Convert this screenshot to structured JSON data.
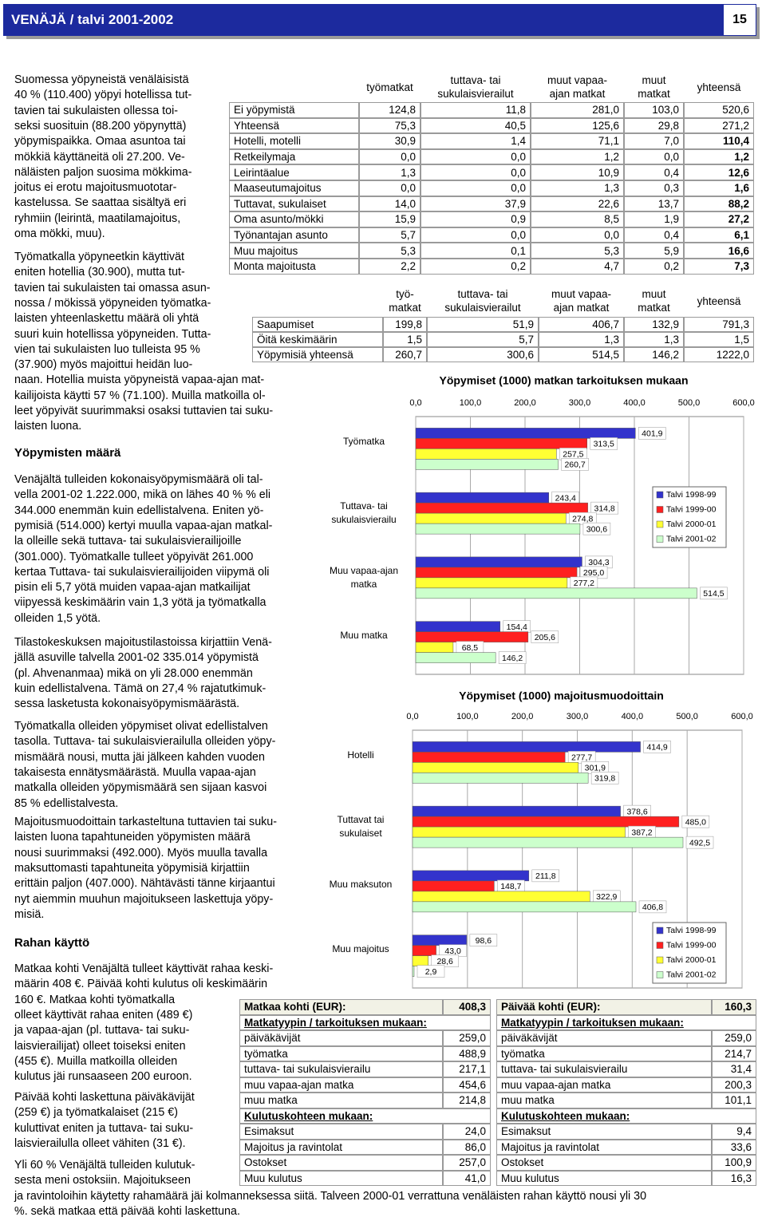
{
  "header": {
    "title": "VENÄJÄ / talvi 2001-2002",
    "page": "15"
  },
  "body": [
    {
      "lines": [
        "Suomessa yöpyneistä venäläisistä",
        "40 % (110.400) yöpyi hotellissa tut-",
        "tavien tai sukulaisten ollessa toi-",
        "seksi suosituin (88.200 yöpynyttä)",
        "yöpymispaikka. Omaa asuntoa tai",
        "mökkiä käyttäneitä oli 27.200. Ve-",
        "näläisten paljon suosima mökkima-",
        "joitus ei erotu majoitusmuototar-",
        "kastelussa. Se saattaa sisältyä eri",
        "ryhmiin (leirintä, maatilamajoitus,",
        "oma mökki, muu)."
      ]
    },
    {
      "lines": [
        "Työmatkalla yöpyneetkin käyttivät",
        "eniten hotellia (30.900), mutta tut-",
        "tavien tai sukulaisten tai omassa asun-",
        "nossa / mökissä yöpyneiden työmatka-",
        "laisten yhteenlaskettu määrä oli yhtä",
        "suuri kuin hotellissa yöpyneiden. Tutta-",
        "vien tai sukulaisten luo tulleista 95 %",
        "(37.900) myös majoittui heidän luo-",
        "naan. Hotellia muista yöpyneistä vapaa-ajan mat-",
        "kailijoista käytti 57 % (71.100). Muilla matkoilla ol-",
        "leet yöpyivät suurimmaksi osaksi tuttavien tai suku-",
        "laisten luona."
      ]
    },
    {
      "heading": "Yöpymisten määrä"
    },
    {
      "lines": [
        "Venäjältä tulleiden kokonaisyöpymismäärä oli tal-",
        "vella 2001-02 1.222.000, mikä on lähes 40 % % eli",
        "344.000 enemmän kuin edellistalvena. Eniten yö-",
        "pymisiä (514.000) kertyi muulla vapaa-ajan matkal-",
        "la olleille sekä tuttava- tai sukulaisvierailijoille",
        "(301.000). Työmatkalle tulleet yöpyivät 261.000",
        "kertaa Tuttava- tai sukulaisvierailijoiden viipymä oli",
        "pisin eli 5,7 yötä muiden vapaa-ajan matkailijat",
        "viipyessä keskimäärin vain 1,3 yötä ja työmatkalla",
        "olleiden 1,5 yötä."
      ]
    },
    {
      "lines": [
        "Tilastokeskuksen majoitustilastoissa kirjattiin Venä-",
        "jällä asuville talvella 2001-02 335.014 yöpymistä",
        "(pl. Ahvenanmaa) mikä on yli 28.000 enemmän",
        "kuin edellistalvena. Tämä on 27,4 % rajatutkimuk-",
        "sessa lasketusta kokonaisyöpymismäärästä."
      ]
    },
    {
      "lines": [
        "Työmatkalla olleiden yöpymiset olivat edellistalven",
        "tasolla. Tuttava- tai sukulaisvierailulla olleiden yöpy-",
        "mismäärä nousi, mutta jäi jälkeen kahden vuoden",
        "takaisesta ennätysmäärästä. Muulla vapaa-ajan",
        "matkalla olleiden yöpymismäärä sen sijaan kasvoi",
        "85 % edellistalvesta."
      ]
    },
    {
      "lines": [
        "Majoitusmuodoittain tarkasteltuna tuttavien tai suku-",
        "laisten luona tapahtuneiden yöpymisten määrä",
        "nousi suurimmaksi (492.000). Myös muulla tavalla",
        "maksuttomasti tapahtuneita yöpymisiä kirjattiin",
        "erittäin paljon (407.000). Nähtävästi tänne kirjaantui",
        "nyt aiemmin muuhun majoitukseen laskettuja yöpy-",
        "misiä."
      ]
    },
    {
      "heading": "Rahan käyttö"
    },
    {
      "lines": [
        "Matkaa kohti Venäjältä tulleet käyttivät rahaa keski-",
        "määrin 408 €. Päivää kohti kulutus oli keskimäärin",
        "160 €. Matkaa kohti työmatkalla",
        "olleet käyttivät rahaa eniten (489 €)",
        "ja vapaa-ajan (pl. tuttava- tai suku-",
        "laisvierailijat) olleet toiseksi eniten",
        "(455 €). Muilla matkoilla olleiden",
        "kulutus jäi runsaaseen 200 euroon."
      ]
    },
    {
      "lines": [
        "Päivää kohti laskettuna päiväkävijät",
        "(259 €) ja työmatkalaiset (215 €)",
        "kuluttivat eniten ja tuttava- tai suku-",
        "laisvierailulla olleet vähiten (31 €)."
      ]
    },
    {
      "lines": [
        "Yli 60 % Venäjältä tulleiden kulutuk-",
        "sesta meni ostoksiin. Majoitukseen",
        "ja ravintoloihin käytetty rahamäärä jäi kolmanneksessa siitä.  Talveen 2000-01 verrattuna venäläisten rahan käyttö nousi yli 30",
        "%. sekä matkaa että päivää kohti laskettuna."
      ]
    }
  ],
  "table1": {
    "header": [
      "",
      "työmatkat",
      "tuttava- tai\nsukulaisvierailut",
      "muut vapaa-\najan matkat",
      "muut\nmatkat",
      "yhteensä"
    ],
    "rows": [
      [
        "Ei yöpymistä",
        "124,8",
        "11,8",
        "281,0",
        "103,0",
        "520,6"
      ],
      [
        "Yhteensä",
        "75,3",
        "40,5",
        "125,6",
        "29,8",
        "271,2"
      ],
      [
        "Hotelli, motelli",
        "30,9",
        "1,4",
        "71,1",
        "7,0",
        "110,4"
      ],
      [
        "Retkeilymaja",
        "0,0",
        "0,0",
        "1,2",
        "0,0",
        "1,2"
      ],
      [
        "Leirintäalue",
        "1,3",
        "0,0",
        "10,9",
        "0,4",
        "12,6"
      ],
      [
        "Maaseutumajoitus",
        "0,0",
        "0,0",
        "1,3",
        "0,3",
        "1,6"
      ],
      [
        "Tuttavat, sukulaiset",
        "14,0",
        "37,9",
        "22,6",
        "13,7",
        "88,2"
      ],
      [
        "Oma asunto/mökki",
        "15,9",
        "0,9",
        "8,5",
        "1,9",
        "27,2"
      ],
      [
        "Työnantajan asunto",
        "5,7",
        "0,0",
        "0,0",
        "0,4",
        "6,1"
      ],
      [
        "Muu majoitus",
        "5,3",
        "0,1",
        "5,3",
        "5,9",
        "16,6"
      ],
      [
        "Monta majoitusta",
        "2,2",
        "0,2",
        "4,7",
        "0,2",
        "7,3"
      ]
    ]
  },
  "table2": {
    "header": [
      "",
      "työ-\nmatkat",
      "tuttava- tai\nsukulaisvierailut",
      "muut vapaa-\najan matkat",
      "muut\nmatkat",
      "yhteensä"
    ],
    "rows": [
      [
        "Saapumiset",
        "199,8",
        "51,9",
        "406,7",
        "132,9",
        "791,3"
      ],
      [
        "Öitä keskimäärin",
        "1,5",
        "5,7",
        "1,3",
        "1,3",
        "1,5"
      ],
      [
        "Yöpymisiä yhteensä",
        "260,7",
        "300,6",
        "514,5",
        "146,2",
        "1222,0"
      ]
    ]
  },
  "charts": [
    {
      "type": "bar",
      "horizontal": true,
      "title": "Yöpymiset (1000) matkan tarkoituksen mukaan",
      "categories": [
        "Työmatka",
        "Tuttava- tai sukulaisvierailu",
        "Muu vapaa-ajan matka",
        "Muu matka"
      ],
      "series": [
        {
          "name": "Talvi 1998-99",
          "color": "#3333cc",
          "values": [
            401.9,
            243.4,
            304.3,
            154.4
          ],
          "value_labels": [
            "401,9",
            "243,4",
            "304,3",
            "154,4"
          ]
        },
        {
          "name": "Talvi 1999-00",
          "color": "#ff2020",
          "values": [
            313.5,
            314.8,
            295.0,
            205.6
          ],
          "value_labels": [
            "313,5",
            "314,8",
            "295,0",
            "205,6"
          ]
        },
        {
          "name": "Talvi 2000-01",
          "color": "#ffff33",
          "values": [
            257.5,
            274.8,
            277.2,
            68.5
          ],
          "value_labels": [
            "257,5",
            "274,8",
            "277,2",
            "68,5"
          ]
        },
        {
          "name": "Talvi 2001-02",
          "color": "#ccffcc",
          "values": [
            260.7,
            300.6,
            514.5,
            146.2
          ],
          "value_labels": [
            "260,7",
            "300,6",
            "514,5",
            "146,2"
          ]
        }
      ],
      "xlim": [
        0,
        600
      ],
      "xticks": [
        {
          "value": 0,
          "label": "0,0"
        },
        {
          "value": 100,
          "label": "100,0"
        },
        {
          "value": 200,
          "label": "200,0"
        },
        {
          "value": 300,
          "label": "300,0"
        },
        {
          "value": 400,
          "label": "400,0"
        },
        {
          "value": 500,
          "label": "500,0"
        },
        {
          "value": 600,
          "label": "600,0"
        }
      ],
      "grid": true,
      "legend": "right"
    },
    {
      "type": "bar",
      "horizontal": true,
      "title": "Yöpymiset (1000) majoitusmuodoittain",
      "categories": [
        "Hotelli",
        "Tuttavat tai sukulaiset",
        "Muu maksuton",
        "Muu majoitus"
      ],
      "series": [
        {
          "name": "Talvi 1998-99",
          "color": "#3333cc",
          "values": [
            414.9,
            378.6,
            211.8,
            98.6
          ],
          "value_labels": [
            "414,9",
            "378,6",
            "211,8",
            "98,6"
          ]
        },
        {
          "name": "Talvi 1999-00",
          "color": "#ff2020",
          "values": [
            277.7,
            485.0,
            148.7,
            43.0
          ],
          "value_labels": [
            "277,7",
            "485,0",
            "148,7",
            "43,0"
          ]
        },
        {
          "name": "Talvi 2000-01",
          "color": "#ffff33",
          "values": [
            301.9,
            387.2,
            322.9,
            28.6
          ],
          "value_labels": [
            "301,9",
            "387,2",
            "322,9",
            "28,6"
          ]
        },
        {
          "name": "Talvi 2001-02",
          "color": "#ccffcc",
          "values": [
            319.8,
            492.5,
            406.8,
            2.9
          ],
          "value_labels": [
            "319,8",
            "492,5",
            "406,8",
            "2,9"
          ]
        }
      ],
      "xlim": [
        0,
        600
      ],
      "xticks": [
        {
          "value": 0,
          "label": "0,0"
        },
        {
          "value": 100,
          "label": "100,0"
        },
        {
          "value": 200,
          "label": "200,0"
        },
        {
          "value": 300,
          "label": "300,0"
        },
        {
          "value": 400,
          "label": "400,0"
        },
        {
          "value": 500,
          "label": "500,0"
        },
        {
          "value": 600,
          "label": "600,0"
        }
      ],
      "grid": true,
      "legend": "bottom-right"
    }
  ],
  "table3": {
    "columns": [
      {
        "rows": [
          [
            "Matkaa kohti (EUR):",
            "408,3"
          ],
          [
            "Matkatyypin / tarkoituksen mukaan:"
          ],
          [
            "päiväkävijät",
            "259,0"
          ],
          [
            "työmatka",
            "488,9"
          ],
          [
            "tuttava- tai sukulaisvierailu",
            "217,1"
          ],
          [
            "muu vapaa-ajan matka",
            "454,6"
          ],
          [
            "muu matka",
            "214,8"
          ],
          [
            "Kulutuskohteen mukaan:"
          ],
          [
            "Esimaksut",
            "24,0"
          ],
          [
            "Majoitus ja ravintolat",
            "86,0"
          ],
          [
            "Ostokset",
            "257,0"
          ],
          [
            "Muu kulutus",
            "41,0"
          ]
        ]
      },
      {
        "rows": [
          [
            "Päivää kohti (EUR):",
            "160,3"
          ],
          [
            "Matkatyypin / tarkoituksen mukaan:"
          ],
          [
            "päiväkävijät",
            "259,0"
          ],
          [
            "työmatka",
            "214,7"
          ],
          [
            "tuttava- tai sukulaisvierailu",
            "31,4"
          ],
          [
            "muu vapaa-ajan matka",
            "200,3"
          ],
          [
            "muu matka",
            "101,1"
          ],
          [
            "Kulutuskohteen mukaan:"
          ],
          [
            "Esimaksut",
            "9,4"
          ],
          [
            "Majoitus ja ravintolat",
            "33,6"
          ],
          [
            "Ostokset",
            "100,9"
          ],
          [
            "Muu kulutus",
            "16,3"
          ]
        ]
      }
    ]
  }
}
